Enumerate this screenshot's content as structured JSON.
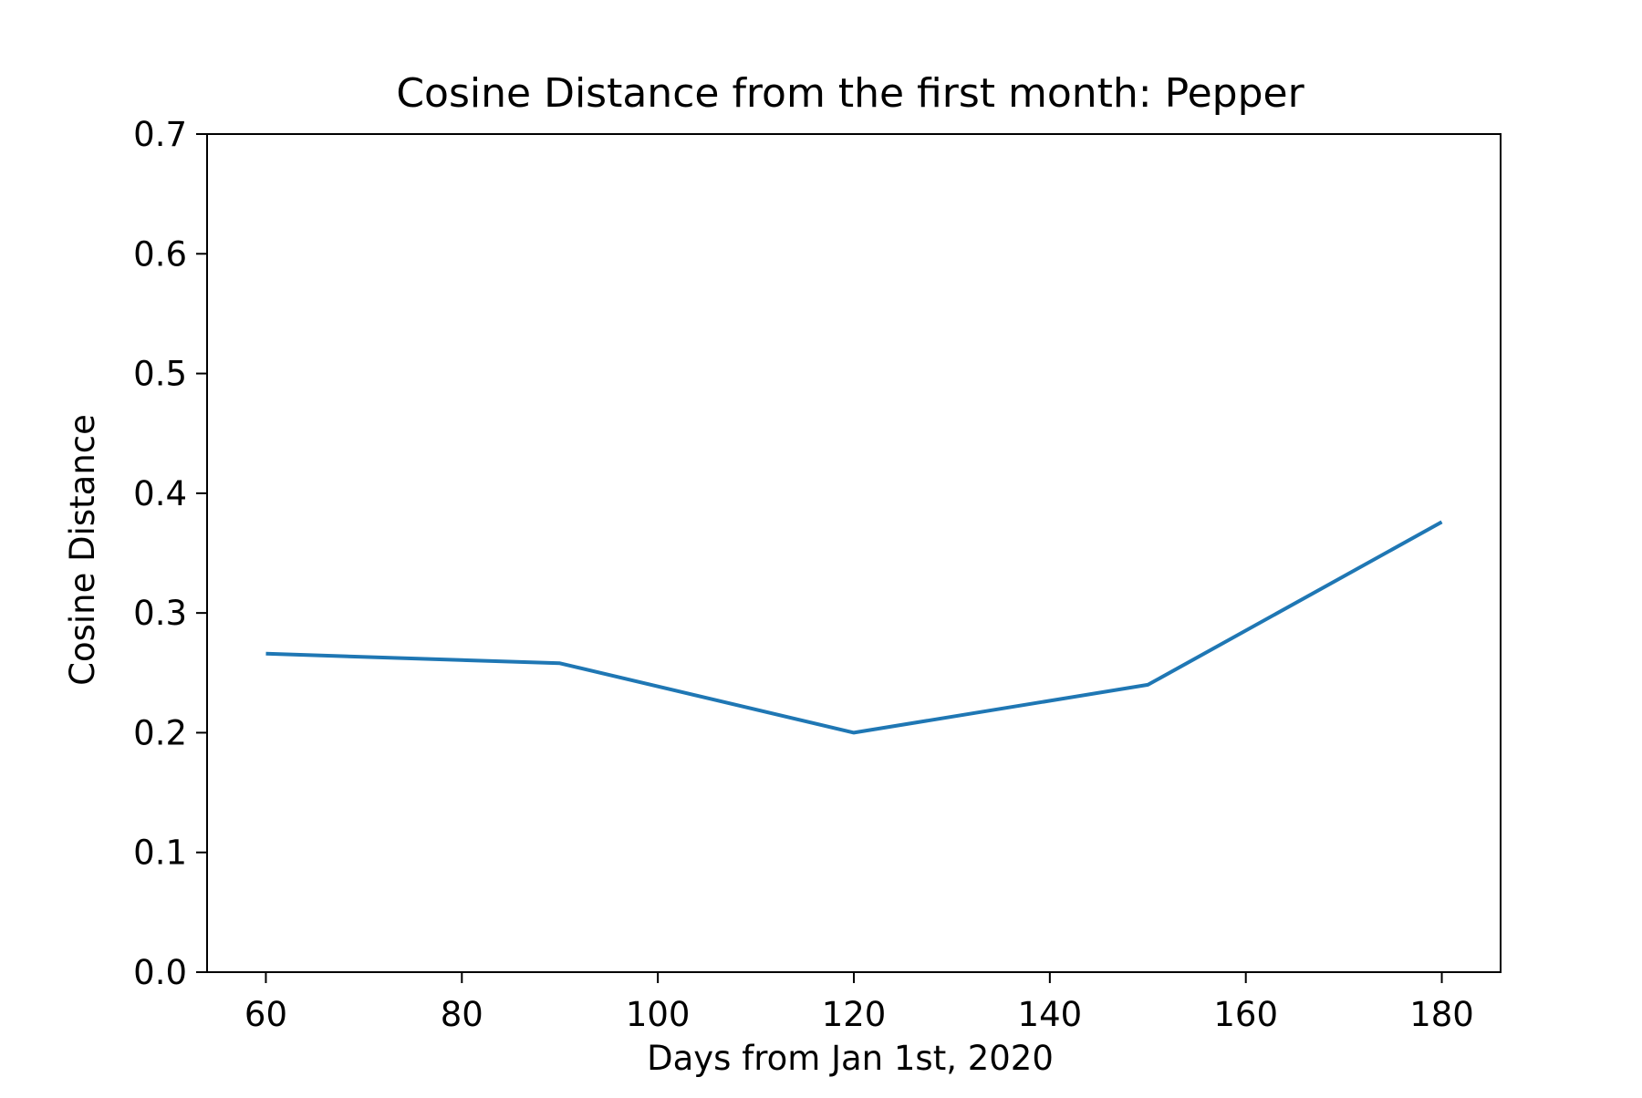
{
  "chart_data": {
    "type": "line",
    "title": "Cosine Distance from the first month: Pepper",
    "xlabel": "Days from Jan 1st, 2020",
    "ylabel": "Cosine Distance",
    "xlim": [
      54,
      186
    ],
    "ylim": [
      0.0,
      0.7
    ],
    "xticks": [
      60,
      80,
      100,
      120,
      140,
      160,
      180
    ],
    "xtick_labels": [
      "60",
      "80",
      "100",
      "120",
      "140",
      "160",
      "180"
    ],
    "yticks": [
      0.0,
      0.1,
      0.2,
      0.3,
      0.4,
      0.5,
      0.6,
      0.7
    ],
    "ytick_labels": [
      "0.0",
      "0.1",
      "0.2",
      "0.3",
      "0.4",
      "0.5",
      "0.6",
      "0.7"
    ],
    "grid": false,
    "series": [
      {
        "color": "#1f77b4",
        "x": [
          60,
          90,
          120,
          150,
          180
        ],
        "y": [
          0.266,
          0.258,
          0.2,
          0.24,
          0.376
        ]
      }
    ]
  }
}
